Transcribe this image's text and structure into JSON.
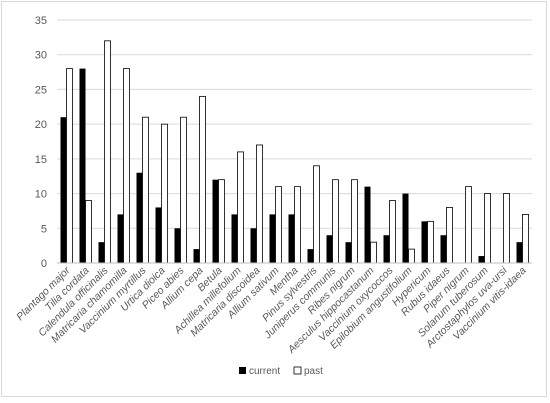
{
  "chart_data": {
    "type": "bar",
    "title": "",
    "xlabel": "",
    "ylabel": "",
    "ylim": [
      0,
      35
    ],
    "yticks": [
      0,
      5,
      10,
      15,
      20,
      25,
      30,
      35
    ],
    "grid": true,
    "legend_position": "bottom",
    "categories": [
      "Plantago major",
      "Tilia cordata",
      "Calendula officinalis",
      "Matricaria chamomilla",
      "Vaccinium myrtillus",
      "Urtica dioica",
      "Piceo abies",
      "Allium cepa",
      "Betula",
      "Achillea millefolium",
      "Matricaria discoidea",
      "Allium sativum",
      "Mentha",
      "Pinus sylvestris",
      "Juniperus communis",
      "Ribes nigrum",
      "Aesculus hippocastanum",
      "Vaccinium oxycoccos",
      "Epilobium angustifolium",
      "Hypericum",
      "Rubus idaeus",
      "Piper nigrum",
      "Solanum tuberosum",
      "Arctostaphylos uva-ursi",
      "Vaccinium vitis-idaea"
    ],
    "series": [
      {
        "name": "current",
        "color": "#000000",
        "values": [
          21,
          28,
          3,
          7,
          13,
          8,
          5,
          2,
          12,
          7,
          5,
          7,
          7,
          2,
          4,
          3,
          11,
          4,
          10,
          6,
          4,
          0,
          1,
          0,
          3
        ]
      },
      {
        "name": "past",
        "color": "#ffffff",
        "values": [
          28,
          9,
          32,
          28,
          21,
          20,
          21,
          24,
          12,
          16,
          17,
          11,
          11,
          14,
          12,
          12,
          3,
          9,
          2,
          6,
          8,
          11,
          10,
          10,
          7
        ]
      }
    ]
  }
}
